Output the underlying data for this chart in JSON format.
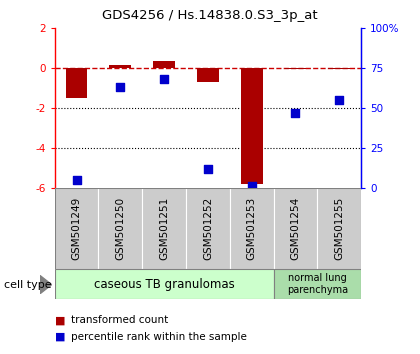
{
  "title": "GDS4256 / Hs.14838.0.S3_3p_at",
  "samples": [
    "GSM501249",
    "GSM501250",
    "GSM501251",
    "GSM501252",
    "GSM501253",
    "GSM501254",
    "GSM501255"
  ],
  "transformed_count": [
    -1.5,
    0.15,
    0.35,
    -0.7,
    -5.8,
    -0.05,
    -0.05
  ],
  "percentile_rank": [
    5,
    63,
    68,
    12,
    1,
    47,
    55
  ],
  "left_ylim": [
    -6,
    2
  ],
  "right_ylim": [
    0,
    100
  ],
  "left_yticks": [
    -6,
    -4,
    -2,
    0,
    2
  ],
  "right_yticks": [
    0,
    25,
    50,
    75,
    100
  ],
  "right_yticklabels": [
    "0",
    "25",
    "50",
    "75",
    "100%"
  ],
  "dotted_lines": [
    -2,
    -4
  ],
  "bar_color": "#aa0000",
  "scatter_color": "#0000cc",
  "dashed_color": "#cc0000",
  "group1_label": "caseous TB granulomas",
  "group2_label": "normal lung\nparenchyma",
  "group1_color": "#ccffcc",
  "group2_color": "#aaddaa",
  "legend_bar_label": "transformed count",
  "legend_scatter_label": "percentile rank within the sample",
  "bar_width": 0.5,
  "scatter_size": 35,
  "cell_type_label": "cell type",
  "sample_box_color": "#cccccc",
  "title_fontsize": 9.5,
  "tick_fontsize": 7.5,
  "label_fontsize": 7.5,
  "legend_fontsize": 7.5
}
